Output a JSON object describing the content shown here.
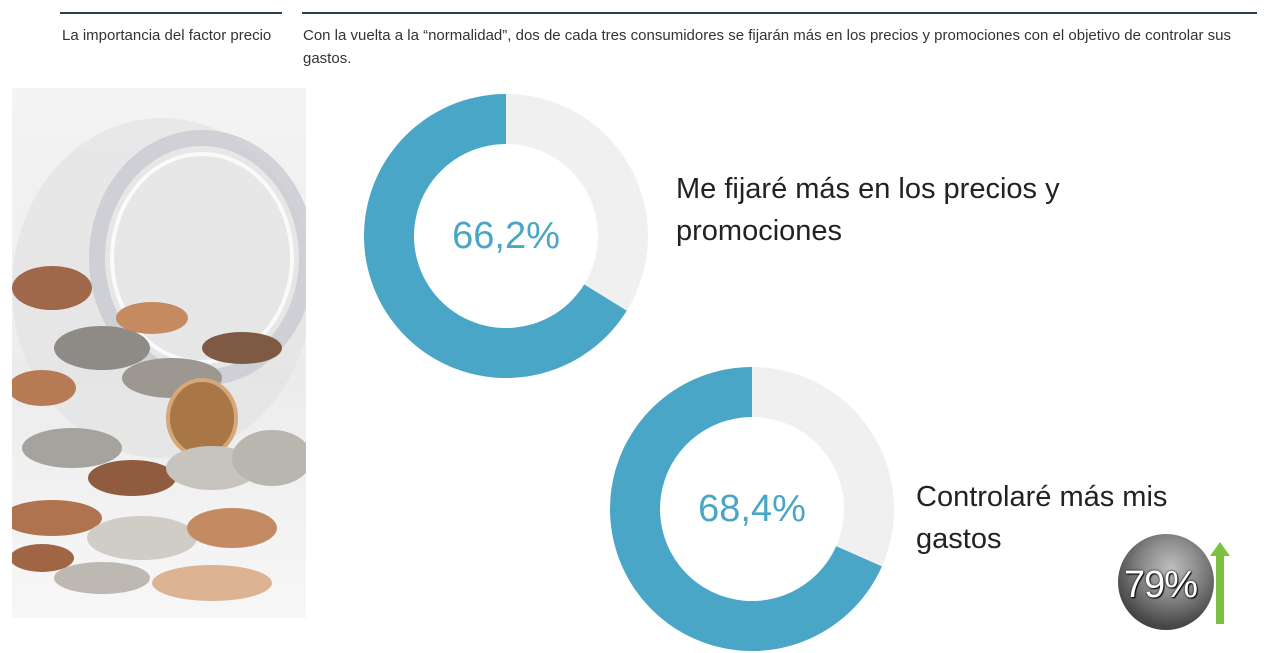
{
  "side_title": "La importancia del factor precio",
  "subtitle": "Con la vuelta a la “normalidad”, dos de cada tres consumidores se fijarán más en los precios y promociones con el objetivo de controlar sus gastos.",
  "colors": {
    "accent": "#4aa6c6",
    "remainder": "#f0f0f0",
    "arrow": "#7dc142"
  },
  "chart_data": [
    {
      "type": "pie",
      "categories": [
        "Me fijaré más en los precios y promociones",
        ""
      ],
      "values": [
        66.2,
        33.8
      ],
      "value_label": "66,2%",
      "label": "Me fijaré más en los precios y promociones"
    },
    {
      "type": "pie",
      "categories": [
        "Controlaré más mis gastos",
        ""
      ],
      "values": [
        68.4,
        31.6
      ],
      "value_label": "68,4%",
      "label": "Controlaré más mis gastos"
    }
  ],
  "badge": {
    "value": "79%",
    "icon": "up-arrow-icon"
  },
  "photo": {
    "icon": "coin-jar-photo"
  }
}
